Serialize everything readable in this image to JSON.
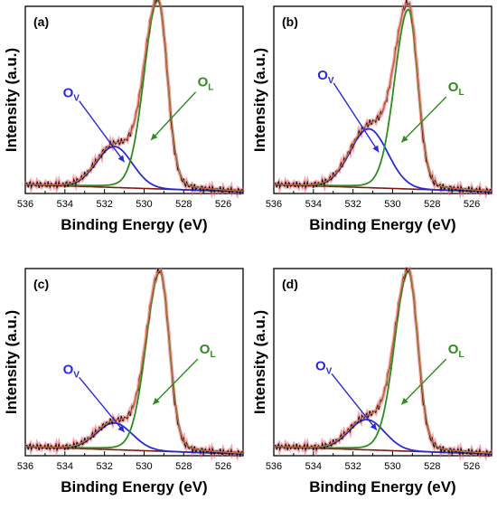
{
  "colors": {
    "raw": "#111111",
    "fit": "#f06070",
    "sum": "#c07040",
    "ov": "#2a2ad8",
    "ol": "#2e8b1e",
    "background": "#7a1a12",
    "axis": "#000000"
  },
  "chart_data": [
    {
      "type": "line",
      "panel_label": "(a)",
      "xlabel": "Binding Energy (eV)",
      "ylabel": "Intensity (a.u.)",
      "xlim": [
        536,
        525
      ],
      "xticks": [
        "536",
        "534",
        "532",
        "530",
        "528",
        "526"
      ],
      "ylim": [
        0,
        1.05
      ],
      "x_reversed": true,
      "annotations": {
        "ov": "O",
        "ov_sub": "V",
        "ol": "O",
        "ol_sub": "L"
      },
      "peaks": {
        "ol_center": 529.3,
        "ol_amp": 1.0,
        "ol_width": 0.55,
        "ov_center": 531.5,
        "ov_amp": 0.23,
        "ov_width": 0.9
      },
      "baseline": [
        0.05,
        0.01
      ]
    },
    {
      "type": "line",
      "panel_label": "(b)",
      "xlabel": "Binding Energy (eV)",
      "ylabel": "Intensity (a.u.)",
      "xlim": [
        536,
        525
      ],
      "xticks": [
        "536",
        "534",
        "532",
        "530",
        "528",
        "526"
      ],
      "ylim": [
        0,
        1.05
      ],
      "x_reversed": true,
      "annotations": {
        "ov": "O",
        "ov_sub": "V",
        "ol": "O",
        "ol_sub": "L"
      },
      "peaks": {
        "ol_center": 529.2,
        "ol_amp": 0.95,
        "ol_width": 0.55,
        "ov_center": 531.2,
        "ov_amp": 0.33,
        "ov_width": 0.95
      },
      "baseline": [
        0.05,
        0.01
      ]
    },
    {
      "type": "line",
      "panel_label": "(c)",
      "xlabel": "Binding Energy (eV)",
      "ylabel": "Intensity (a.u.)",
      "xlim": [
        536,
        525
      ],
      "xticks": [
        "536",
        "534",
        "532",
        "530",
        "528",
        "526"
      ],
      "ylim": [
        0,
        1.05
      ],
      "x_reversed": true,
      "annotations": {
        "ov": "O",
        "ov_sub": "V",
        "ol": "O",
        "ol_sub": "L"
      },
      "peaks": {
        "ol_center": 529.2,
        "ol_amp": 0.95,
        "ol_width": 0.55,
        "ov_center": 531.5,
        "ov_amp": 0.15,
        "ov_width": 0.9
      },
      "baseline": [
        0.05,
        0.01
      ]
    },
    {
      "type": "line",
      "panel_label": "(d)",
      "xlabel": "Binding Energy (eV)",
      "ylabel": "Intensity (a.u.)",
      "xlim": [
        536,
        525
      ],
      "xticks": [
        "536",
        "534",
        "532",
        "530",
        "528",
        "526"
      ],
      "ylim": [
        0,
        1.05
      ],
      "x_reversed": true,
      "annotations": {
        "ov": "O",
        "ov_sub": "V",
        "ol": "O",
        "ol_sub": "L"
      },
      "peaks": {
        "ol_center": 529.2,
        "ol_amp": 0.95,
        "ol_width": 0.55,
        "ov_center": 531.3,
        "ov_amp": 0.17,
        "ov_width": 0.9
      },
      "baseline": [
        0.05,
        0.01
      ]
    }
  ]
}
